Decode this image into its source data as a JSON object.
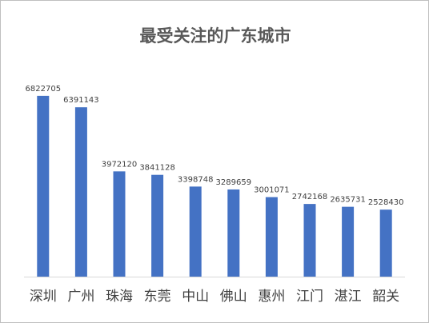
{
  "chart_data": {
    "type": "bar",
    "title": "最受关注的广东城市",
    "xlabel": "",
    "ylabel": "",
    "categories": [
      "深圳",
      "广州",
      "珠海",
      "东莞",
      "中山",
      "佛山",
      "惠州",
      "江门",
      "湛江",
      "韶关"
    ],
    "series": [
      {
        "values": [
          6822705,
          6391143,
          3972120,
          3841128,
          3398748,
          3289659,
          3001071,
          2742168,
          2635731,
          2528430
        ]
      }
    ],
    "data_labels": [
      "6822705",
      "6391143",
      "3972120",
      "3841128",
      "3398748",
      "3289659",
      "3001071",
      "2742168",
      "2635731",
      "2528430"
    ],
    "ylim": [
      0,
      7000000
    ],
    "grid": false,
    "legend": "none",
    "colors": {
      "bar": "#4472C4",
      "axis": "#d9d9d9",
      "label": "#404040",
      "title": "#595959"
    }
  }
}
